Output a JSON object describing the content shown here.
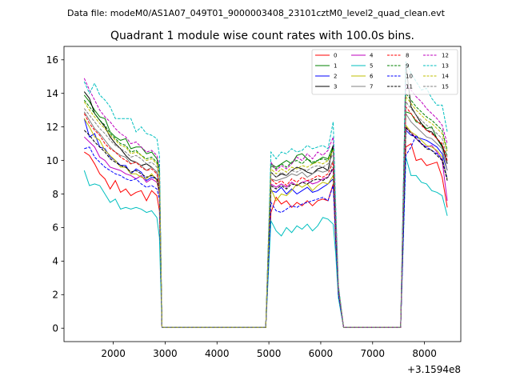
{
  "figure": {
    "suptitle": "Data file: modeM0/AS1A07_049T01_9000003408_23101cztM0_level2_quad_clean.evt",
    "title": "Quadrant 1 module wise count rates with 100.0s bins.",
    "offset_label": "+3.1594e8"
  },
  "chart_data": {
    "type": "line",
    "title": "Quadrant 1 module wise count rates with 100.0s bins.",
    "xlabel": "",
    "ylabel": "",
    "x_offset": 315940000,
    "xlim": [
      1050,
      8700
    ],
    "ylim": [
      -0.8,
      16.8
    ],
    "xticks": [
      2000,
      3000,
      4000,
      5000,
      6000,
      7000,
      8000
    ],
    "xtick_labels": [
      "2000",
      "3000",
      "4000",
      "5000",
      "6000",
      "7000",
      "8000"
    ],
    "yticks": [
      0,
      2,
      4,
      6,
      8,
      10,
      12,
      14,
      16
    ],
    "ytick_labels": [
      "0",
      "2",
      "4",
      "6",
      "8",
      "10",
      "12",
      "14",
      "16"
    ],
    "grid": false,
    "legend_position": "top-right",
    "legend_columns": 4,
    "x": [
      1440,
      1540,
      1640,
      1740,
      1840,
      1940,
      2040,
      2140,
      2240,
      2340,
      2440,
      2540,
      2640,
      2740,
      2840,
      2890,
      2940,
      3040,
      4840,
      4940,
      5040,
      5140,
      5240,
      5340,
      5440,
      5540,
      5640,
      5740,
      5840,
      5940,
      6040,
      6140,
      6240,
      6290,
      6340,
      6440,
      7540,
      7640,
      7740,
      7840,
      7940,
      8040,
      8140,
      8240,
      8340,
      8440
    ],
    "series": [
      {
        "name": "0",
        "color": "#ff0000",
        "dash": "solid",
        "values": [
          10.5,
          10.3,
          9.8,
          9.2,
          8.9,
          8.3,
          8.8,
          8.1,
          8.3,
          7.9,
          8.1,
          8.2,
          7.6,
          8.2,
          7.9,
          7.0,
          0.05,
          0.05,
          0.05,
          0.05,
          6.9,
          7.8,
          7.4,
          7.6,
          7.2,
          7.5,
          7.3,
          7.6,
          7.3,
          7.6,
          7.7,
          7.6,
          8.6,
          5.0,
          2.0,
          0.05,
          0.05,
          10.8,
          11.0,
          10.0,
          10.1,
          9.7,
          9.8,
          9.9,
          9.0,
          7.2
        ]
      },
      {
        "name": "1",
        "color": "#008000",
        "dash": "solid",
        "values": [
          13.9,
          13.5,
          13.0,
          12.6,
          12.5,
          11.7,
          11.4,
          11.2,
          11.3,
          10.7,
          10.8,
          10.8,
          10.4,
          10.5,
          10.1,
          9.5,
          0.05,
          0.05,
          0.05,
          0.05,
          9.8,
          9.6,
          9.8,
          10.0,
          9.8,
          10.3,
          10.4,
          10.1,
          9.8,
          10.0,
          10.2,
          10.1,
          10.9,
          6.5,
          2.4,
          0.05,
          0.05,
          12.9,
          12.8,
          12.3,
          12.2,
          11.9,
          12.0,
          11.3,
          10.8,
          10.3
        ]
      },
      {
        "name": "2",
        "color": "#0000ff",
        "dash": "solid",
        "values": [
          12.5,
          11.4,
          11.6,
          10.8,
          10.7,
          10.2,
          10.0,
          9.7,
          9.7,
          9.2,
          9.5,
          9.3,
          8.8,
          9.0,
          8.9,
          8.1,
          0.05,
          0.05,
          0.05,
          0.05,
          8.2,
          8.1,
          8.4,
          8.0,
          8.3,
          8.0,
          8.2,
          8.4,
          8.1,
          8.2,
          8.4,
          8.6,
          8.9,
          5.6,
          2.2,
          0.05,
          0.05,
          11.8,
          11.5,
          11.4,
          11.3,
          11.2,
          11.0,
          10.8,
          10.4,
          9.4
        ]
      },
      {
        "name": "3",
        "color": "#000000",
        "dash": "solid",
        "values": [
          14.1,
          13.7,
          12.8,
          12.4,
          12.0,
          11.4,
          11.0,
          10.7,
          10.3,
          10.0,
          9.9,
          9.7,
          9.8,
          9.6,
          9.3,
          8.5,
          0.05,
          0.05,
          0.05,
          0.05,
          9.3,
          9.0,
          9.2,
          9.1,
          9.4,
          9.6,
          9.5,
          9.3,
          9.2,
          9.5,
          9.6,
          9.4,
          10.9,
          6.4,
          2.3,
          0.05,
          0.05,
          15.7,
          13.2,
          12.7,
          12.2,
          11.8,
          11.7,
          11.3,
          10.9,
          9.8
        ]
      },
      {
        "name": "4",
        "color": "#bf00bf",
        "dash": "solid",
        "values": [
          11.4,
          11.1,
          10.8,
          10.2,
          10.0,
          9.6,
          9.5,
          9.4,
          9.2,
          9.1,
          8.9,
          9.1,
          8.7,
          8.9,
          8.7,
          8.0,
          0.05,
          0.05,
          0.05,
          0.05,
          8.6,
          8.4,
          8.6,
          8.4,
          8.7,
          8.5,
          8.7,
          8.8,
          8.6,
          8.7,
          8.9,
          9.0,
          9.5,
          5.8,
          2.2,
          0.05,
          0.05,
          11.9,
          11.7,
          11.3,
          11.0,
          10.8,
          10.9,
          10.5,
          10.0,
          7.6
        ]
      },
      {
        "name": "5",
        "color": "#00bfbf",
        "dash": "solid",
        "values": [
          9.4,
          8.5,
          8.6,
          8.5,
          8.0,
          7.5,
          7.7,
          7.1,
          7.2,
          7.1,
          7.2,
          7.1,
          6.9,
          7.0,
          6.6,
          5.4,
          0.05,
          0.05,
          0.05,
          0.05,
          6.4,
          5.8,
          5.5,
          6.0,
          5.7,
          6.1,
          5.9,
          6.2,
          5.8,
          6.1,
          6.6,
          6.5,
          6.2,
          4.4,
          1.8,
          0.05,
          0.05,
          10.2,
          9.1,
          9.1,
          8.7,
          8.6,
          8.2,
          8.1,
          7.9,
          6.7
        ]
      },
      {
        "name": "6",
        "color": "#bfbf00",
        "dash": "solid",
        "values": [
          12.5,
          12.0,
          11.4,
          11.2,
          10.6,
          10.3,
          10.0,
          9.6,
          9.6,
          9.2,
          9.2,
          9.0,
          8.9,
          9.2,
          8.8,
          8.1,
          0.05,
          0.05,
          0.05,
          0.05,
          8.3,
          7.6,
          8.0,
          7.9,
          8.2,
          8.6,
          8.4,
          8.6,
          8.2,
          8.5,
          8.7,
          8.6,
          9.1,
          5.7,
          2.1,
          0.05,
          0.05,
          12.1,
          11.7,
          11.5,
          11.2,
          10.9,
          10.8,
          10.6,
          10.2,
          8.9
        ]
      },
      {
        "name": "7",
        "color": "#808080",
        "dash": "solid",
        "values": [
          12.9,
          12.4,
          11.9,
          11.6,
          11.2,
          10.8,
          10.5,
          10.3,
          10.2,
          9.8,
          9.9,
          9.7,
          9.4,
          9.6,
          9.3,
          8.6,
          0.05,
          0.05,
          0.05,
          0.05,
          8.9,
          8.8,
          8.9,
          9.0,
          9.2,
          9.1,
          9.3,
          9.0,
          9.2,
          9.4,
          9.3,
          9.4,
          10.0,
          6.2,
          2.3,
          0.05,
          0.05,
          12.8,
          12.3,
          12.0,
          11.7,
          11.4,
          11.3,
          11.0,
          10.7,
          9.4
        ]
      },
      {
        "name": "8",
        "color": "#ff0000",
        "dash": "dashed",
        "values": [
          12.8,
          12.2,
          11.8,
          11.5,
          11.0,
          10.7,
          10.5,
          10.2,
          10.0,
          9.8,
          9.9,
          9.6,
          9.4,
          9.5,
          9.2,
          8.5,
          0.05,
          0.05,
          0.05,
          0.05,
          8.9,
          8.6,
          8.8,
          8.5,
          8.9,
          8.7,
          9.0,
          8.8,
          8.9,
          9.1,
          9.0,
          9.2,
          9.9,
          6.1,
          2.3,
          0.05,
          0.05,
          13.2,
          12.8,
          12.4,
          12.1,
          11.8,
          11.6,
          11.3,
          11.0,
          10.0
        ]
      },
      {
        "name": "9",
        "color": "#008000",
        "dash": "dashed",
        "values": [
          13.6,
          13.2,
          12.8,
          12.4,
          12.1,
          11.6,
          11.3,
          11.0,
          10.9,
          10.5,
          10.6,
          10.3,
          10.1,
          10.2,
          9.9,
          9.2,
          0.05,
          0.05,
          0.05,
          0.05,
          9.7,
          9.5,
          9.8,
          9.6,
          9.9,
          10.0,
          9.8,
          10.1,
          9.9,
          10.0,
          10.1,
          10.0,
          10.7,
          6.5,
          2.4,
          0.05,
          0.05,
          14.0,
          13.6,
          13.2,
          12.9,
          12.6,
          12.4,
          12.1,
          11.8,
          10.6
        ]
      },
      {
        "name": "10",
        "color": "#0000ff",
        "dash": "dashed",
        "values": [
          10.7,
          10.8,
          10.2,
          9.9,
          9.6,
          9.4,
          9.2,
          9.1,
          8.9,
          8.8,
          8.9,
          8.6,
          8.4,
          8.5,
          8.3,
          7.7,
          0.05,
          0.05,
          0.05,
          0.05,
          7.5,
          7.0,
          6.9,
          7.1,
          7.3,
          7.2,
          7.4,
          7.5,
          7.6,
          7.7,
          7.8,
          7.6,
          8.5,
          5.3,
          2.0,
          0.05,
          0.05,
          10.3,
          10.8,
          11.5,
          11.0,
          10.8,
          10.6,
          10.4,
          10.1,
          8.9
        ]
      },
      {
        "name": "11",
        "color": "#000000",
        "dash": "dashed",
        "values": [
          11.8,
          11.5,
          11.1,
          10.8,
          10.5,
          10.1,
          9.9,
          9.7,
          9.6,
          9.3,
          9.4,
          9.2,
          9.0,
          9.1,
          8.9,
          8.2,
          0.05,
          0.05,
          0.05,
          0.05,
          8.5,
          8.3,
          8.5,
          8.3,
          8.6,
          8.5,
          8.7,
          8.6,
          8.8,
          8.9,
          8.8,
          9.0,
          9.6,
          5.9,
          2.2,
          0.05,
          0.05,
          12.0,
          11.6,
          11.3,
          11.0,
          10.7,
          10.6,
          10.3,
          10.0,
          8.8
        ]
      },
      {
        "name": "12",
        "color": "#bf00bf",
        "dash": "dashed",
        "values": [
          14.9,
          14.2,
          13.6,
          13.0,
          12.6,
          12.3,
          11.9,
          11.6,
          11.4,
          11.0,
          11.1,
          10.8,
          10.5,
          10.6,
          10.3,
          9.6,
          0.05,
          0.05,
          0.05,
          0.05,
          9.9,
          9.4,
          9.7,
          9.5,
          9.8,
          10.2,
          10.0,
          10.4,
          10.1,
          10.5,
          10.3,
          10.6,
          11.4,
          6.9,
          2.5,
          0.05,
          0.05,
          14.5,
          14.2,
          13.8,
          13.5,
          13.1,
          12.8,
          12.5,
          12.1,
          11.0
        ]
      },
      {
        "name": "13",
        "color": "#00bfbf",
        "dash": "dashed",
        "values": [
          14.7,
          14.0,
          14.6,
          13.9,
          13.6,
          13.2,
          12.5,
          12.5,
          12.5,
          12.5,
          11.7,
          12.0,
          11.6,
          11.5,
          11.3,
          10.3,
          0.05,
          0.05,
          0.05,
          0.05,
          10.5,
          10.1,
          10.5,
          10.4,
          10.7,
          10.5,
          10.6,
          10.9,
          10.7,
          10.8,
          10.9,
          10.7,
          12.3,
          7.3,
          2.6,
          0.05,
          0.05,
          15.9,
          15.2,
          14.7,
          14.2,
          14.3,
          13.7,
          13.3,
          13.3,
          11.7
        ]
      },
      {
        "name": "14",
        "color": "#bfbf00",
        "dash": "dashed",
        "values": [
          13.5,
          13.0,
          12.6,
          12.2,
          11.9,
          11.5,
          11.2,
          10.9,
          10.8,
          10.4,
          10.5,
          10.3,
          10.0,
          10.1,
          9.8,
          9.1,
          0.05,
          0.05,
          0.05,
          0.05,
          9.5,
          9.2,
          9.5,
          9.3,
          9.6,
          9.5,
          9.7,
          9.6,
          9.8,
          9.9,
          9.8,
          10.0,
          10.6,
          6.4,
          2.4,
          0.05,
          0.05,
          13.8,
          13.4,
          13.0,
          12.7,
          12.4,
          12.2,
          11.9,
          11.6,
          10.5
        ]
      },
      {
        "name": "15",
        "color": "#808080",
        "dash": "dashed",
        "values": [
          13.1,
          12.7,
          12.3,
          11.9,
          11.6,
          11.2,
          10.9,
          10.7,
          10.5,
          10.2,
          10.3,
          10.1,
          9.8,
          9.9,
          9.6,
          8.9,
          0.05,
          0.05,
          0.05,
          0.05,
          9.3,
          9.0,
          9.3,
          9.1,
          9.4,
          9.3,
          9.5,
          9.4,
          9.6,
          9.7,
          9.6,
          9.8,
          10.4,
          6.3,
          2.3,
          0.05,
          0.05,
          13.5,
          13.1,
          12.7,
          12.4,
          12.1,
          11.9,
          11.6,
          11.3,
          10.2
        ]
      }
    ]
  }
}
